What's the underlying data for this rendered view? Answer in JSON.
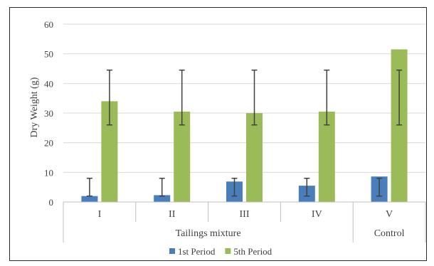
{
  "chart_data": {
    "type": "bar",
    "ylabel": "Dry Weight (g)",
    "ylim": [
      0,
      60
    ],
    "yticks": [
      0,
      10,
      20,
      30,
      40,
      50,
      60
    ],
    "grid": true,
    "legend_position": "bottom",
    "categories": [
      "I",
      "II",
      "III",
      "IV",
      "V"
    ],
    "groups": [
      {
        "label": "Tailings mixture",
        "categories": [
          "I",
          "II",
          "III",
          "IV"
        ]
      },
      {
        "label": "Control",
        "categories": [
          "V"
        ]
      }
    ],
    "series": [
      {
        "name": "1st Period",
        "color": "#4a7ebb",
        "values": [
          2.0,
          2.3,
          6.9,
          5.5,
          8.6
        ],
        "error_low": [
          2.0,
          2.0,
          2.0,
          2.0,
          2.0
        ],
        "error_high": [
          8.0,
          8.0,
          8.0,
          8.0,
          8.0
        ]
      },
      {
        "name": "5th Period",
        "color": "#9bbb59",
        "values": [
          34.0,
          30.5,
          30.0,
          30.5,
          51.5
        ],
        "error_low": [
          26.0,
          26.0,
          26.0,
          26.0,
          26.0
        ],
        "error_high": [
          44.5,
          44.5,
          44.5,
          44.5,
          44.5
        ]
      }
    ]
  }
}
